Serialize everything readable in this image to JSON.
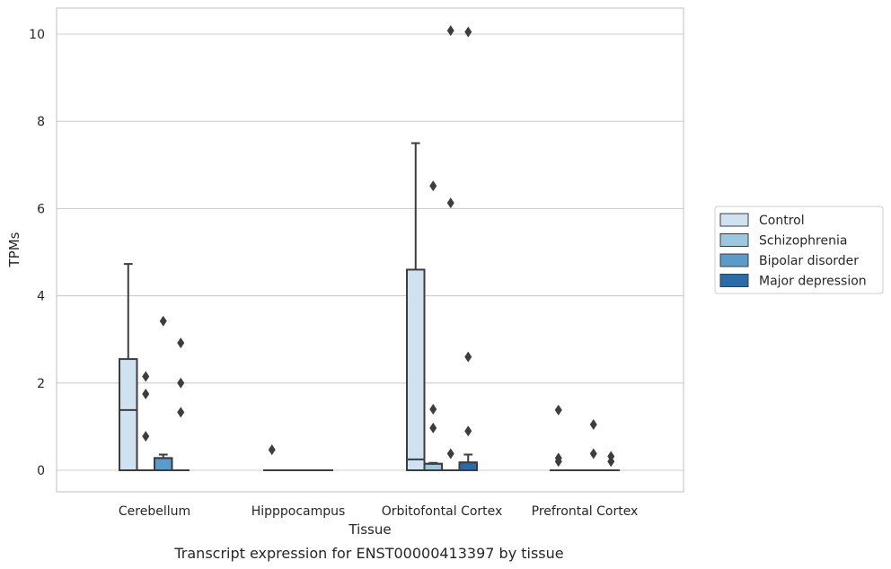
{
  "chart_data": {
    "type": "box",
    "title": "Transcript expression for ENST00000413397 by tissue",
    "xlabel": "Tissue",
    "ylabel": "TPMs",
    "ylim": [
      -0.5,
      10.6
    ],
    "yticks": [
      0,
      2,
      4,
      6,
      8,
      10
    ],
    "grid": "horizontal",
    "legend_position": "right",
    "categories": [
      "Cerebellum",
      "Hipppocampus",
      "Orbitofontal Cortex",
      "Prefrontal Cortex"
    ],
    "series": [
      {
        "name": "Control",
        "color": "#d0e1f2",
        "boxes": [
          {
            "q1": 0,
            "median": 1.38,
            "q3": 2.55,
            "whisker_low": 0,
            "whisker_high": 4.73,
            "outliers": []
          },
          {
            "q1": 0,
            "median": 0,
            "q3": 0,
            "whisker_low": 0,
            "whisker_high": 0,
            "outliers": [
              0.47
            ]
          },
          {
            "q1": 0,
            "median": 0.25,
            "q3": 4.6,
            "whisker_low": 0,
            "whisker_high": 7.5,
            "outliers": []
          },
          {
            "q1": 0,
            "median": 0,
            "q3": 0,
            "whisker_low": 0,
            "whisker_high": 0,
            "outliers": [
              1.38,
              0.28,
              0.2
            ]
          }
        ]
      },
      {
        "name": "Schizophrenia",
        "color": "#9ac8e0",
        "boxes": [
          {
            "q1": 0,
            "median": 0,
            "q3": 0,
            "whisker_low": 0,
            "whisker_high": 0,
            "outliers": [
              2.15,
              1.75,
              0.78
            ]
          },
          {
            "q1": 0,
            "median": 0,
            "q3": 0,
            "whisker_low": 0,
            "whisker_high": 0,
            "outliers": []
          },
          {
            "q1": 0,
            "median": 0.15,
            "q3": 0.15,
            "whisker_low": 0,
            "whisker_high": 0.17,
            "outliers": [
              6.52,
              1.4,
              0.97
            ]
          },
          {
            "q1": 0,
            "median": 0,
            "q3": 0,
            "whisker_low": 0,
            "whisker_high": 0,
            "outliers": []
          }
        ]
      },
      {
        "name": "Bipolar disorder",
        "color": "#5b9bc9",
        "boxes": [
          {
            "q1": 0,
            "median": 0.28,
            "q3": 0.28,
            "whisker_low": 0,
            "whisker_high": 0.36,
            "outliers": [
              3.42
            ]
          },
          {
            "q1": 0,
            "median": 0,
            "q3": 0,
            "whisker_low": 0,
            "whisker_high": 0,
            "outliers": []
          },
          {
            "q1": 0,
            "median": 0,
            "q3": 0,
            "whisker_low": 0,
            "whisker_high": 0,
            "outliers": [
              10.08,
              6.13,
              0.38
            ]
          },
          {
            "q1": 0,
            "median": 0,
            "q3": 0,
            "whisker_low": 0,
            "whisker_high": 0,
            "outliers": [
              1.05,
              0.38
            ]
          }
        ]
      },
      {
        "name": "Major depression",
        "color": "#2c6aa8",
        "boxes": [
          {
            "q1": 0,
            "median": 0,
            "q3": 0,
            "whisker_low": 0,
            "whisker_high": 0,
            "outliers": [
              2.92,
              2.0,
              1.33
            ]
          },
          {
            "q1": 0,
            "median": 0,
            "q3": 0,
            "whisker_low": 0,
            "whisker_high": 0,
            "outliers": []
          },
          {
            "q1": 0,
            "median": 0.18,
            "q3": 0.18,
            "whisker_low": 0,
            "whisker_high": 0.36,
            "outliers": [
              10.05,
              2.6,
              0.9
            ]
          },
          {
            "q1": 0,
            "median": 0,
            "q3": 0,
            "whisker_low": 0,
            "whisker_high": 0,
            "outliers": [
              0.32,
              0.2
            ]
          }
        ]
      }
    ]
  }
}
